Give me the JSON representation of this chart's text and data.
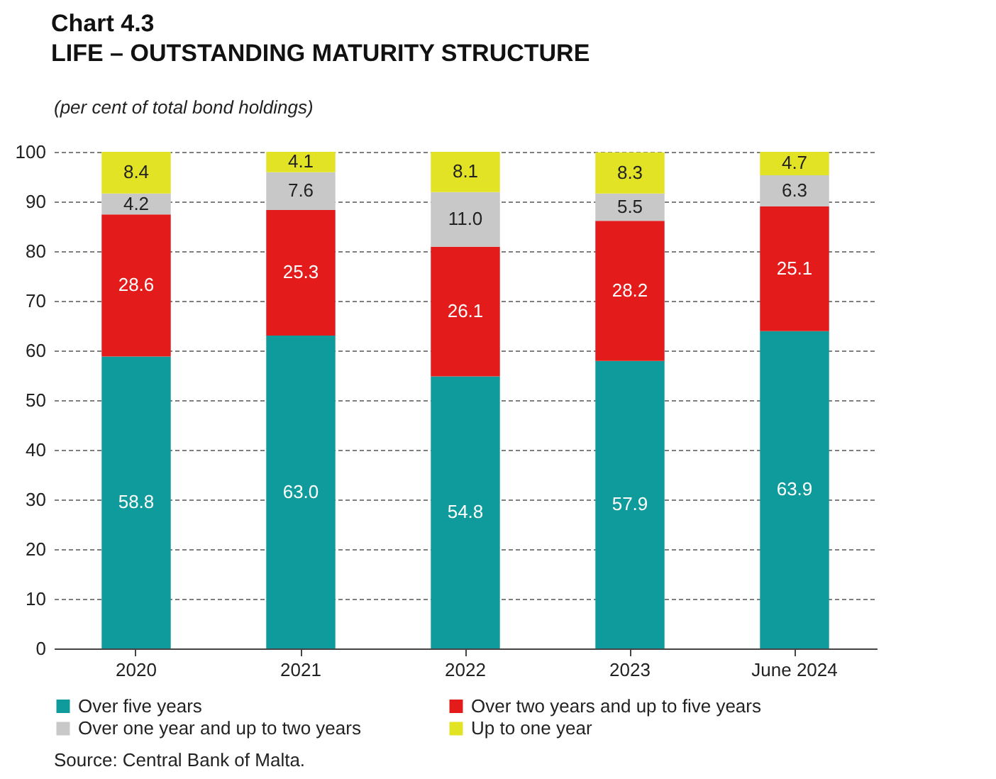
{
  "chart_data": {
    "type": "bar",
    "title": "Chart 4.3",
    "subtitle": "LIFE – OUTSTANDING MATURITY STRUCTURE",
    "annotations": [
      "(per cent of total bond holdings)",
      "Source: Central Bank of Malta."
    ],
    "categories": [
      "2020",
      "2021",
      "2022",
      "2023",
      "June 2024"
    ],
    "stacked": true,
    "ylim": [
      0,
      100
    ],
    "yticks": [
      0,
      10,
      20,
      30,
      40,
      50,
      60,
      70,
      80,
      90,
      100
    ],
    "grid": "y",
    "legend": "bottom",
    "series": [
      {
        "name": "Over five years",
        "color": "#0f9b9c",
        "values": [
          58.8,
          63.0,
          54.8,
          57.9,
          63.9
        ],
        "value_labels": [
          "58.8",
          "63.0",
          "54.8",
          "57.9",
          "63.9"
        ]
      },
      {
        "name": "Over two years and up to five years",
        "color": "#e31b1b",
        "values": [
          28.6,
          25.3,
          26.1,
          28.2,
          25.1
        ],
        "value_labels": [
          "28.6",
          "25.3",
          "26.1",
          "28.2",
          "25.1"
        ]
      },
      {
        "name": "Over one year and up to two years",
        "color": "#c8c8c8",
        "values": [
          4.2,
          7.6,
          11.0,
          5.5,
          6.3
        ],
        "value_labels": [
          "4.2",
          "7.6",
          "11.0",
          "5.5",
          "6.3"
        ]
      },
      {
        "name": "Up to one year",
        "color": "#e3e326",
        "values": [
          8.4,
          4.1,
          8.1,
          8.3,
          4.7
        ],
        "value_labels": [
          "8.4",
          "4.1",
          "8.1",
          "8.3",
          "4.7"
        ]
      }
    ]
  }
}
